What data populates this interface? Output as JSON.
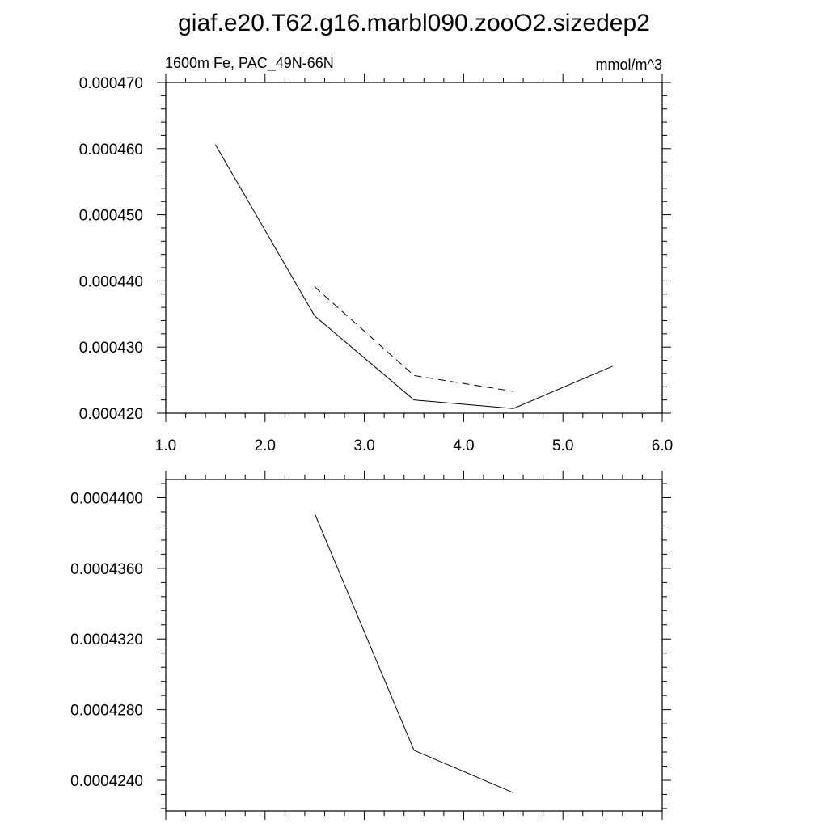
{
  "title": "giaf.e20.T62.g16.marbl090.zooO2.sizedep2",
  "chart_data": [
    {
      "type": "line",
      "title_left": "1600m Fe, PAC_49N-66N",
      "title_right": "mmol/m^3",
      "xlim": [
        1.0,
        6.0
      ],
      "ylim": [
        0.00042,
        0.00047
      ],
      "x_ticks": [
        1.0,
        2.0,
        3.0,
        4.0,
        5.0,
        6.0
      ],
      "x_tick_labels": [
        "1.0",
        "2.0",
        "3.0",
        "4.0",
        "5.0",
        "6.0"
      ],
      "y_ticks": [
        0.00042,
        0.00043,
        0.00044,
        0.00045,
        0.00046,
        0.00047
      ],
      "y_tick_labels": [
        "0.000420",
        "0.000430",
        "0.000440",
        "0.000450",
        "0.000460",
        "0.000470"
      ],
      "grid": false,
      "series": [
        {
          "style": "solid",
          "x": [
            1.5,
            2.5,
            3.5,
            4.5,
            5.5
          ],
          "values": [
            0.0004606,
            0.0004347,
            0.000422,
            0.0004207,
            0.0004271
          ]
        },
        {
          "style": "dashed",
          "x": [
            2.5,
            3.5,
            4.5
          ],
          "values": [
            0.0004391,
            0.0004257,
            0.0004233
          ]
        }
      ]
    },
    {
      "type": "line",
      "xlim": [
        1.0,
        6.0
      ],
      "ylim": [
        0.00042226,
        0.00044103
      ],
      "x_ticks": [
        1.0,
        2.0,
        3.0,
        4.0,
        5.0,
        6.0
      ],
      "y_ticks": [
        0.000424,
        0.000428,
        0.000432,
        0.000436,
        0.00044
      ],
      "y_tick_labels": [
        "0.0004240",
        "0.0004280",
        "0.0004320",
        "0.0004360",
        "0.0004400"
      ],
      "grid": false,
      "series": [
        {
          "style": "solid",
          "x": [
            2.5,
            3.5,
            4.5
          ],
          "values": [
            0.0004391,
            0.0004257,
            0.0004233
          ]
        }
      ]
    }
  ]
}
